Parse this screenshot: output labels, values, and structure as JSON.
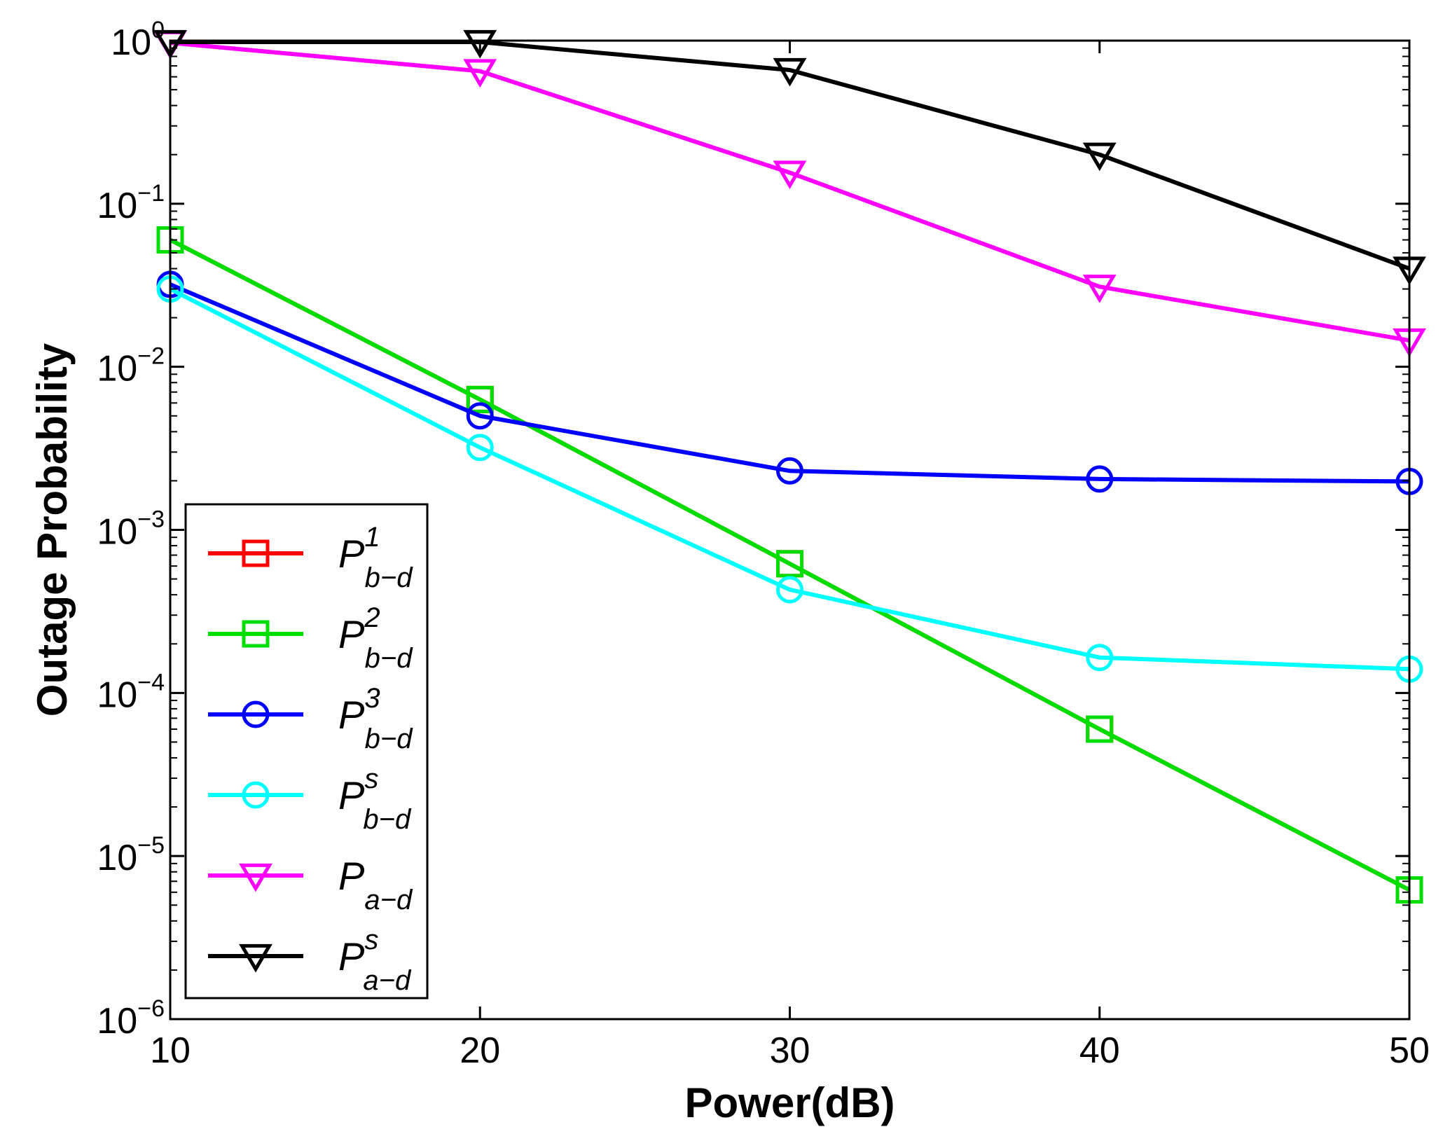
{
  "chart_data": {
    "type": "line",
    "title": "",
    "xlabel": "Power(dB)",
    "ylabel": "Outage Probability",
    "yscale": "log",
    "xlim": [
      10,
      50
    ],
    "ylim_exponents": [
      -6,
      0
    ],
    "x": [
      10,
      20,
      30,
      40,
      50
    ],
    "x_ticks": [
      "10",
      "20",
      "30",
      "40",
      "50"
    ],
    "y_ticks": [
      {
        "base": "10",
        "exp": "0",
        "value": 1
      },
      {
        "base": "10",
        "exp": "−1",
        "value": 0.1
      },
      {
        "base": "10",
        "exp": "−2",
        "value": 0.01
      },
      {
        "base": "10",
        "exp": "−3",
        "value": 0.001
      },
      {
        "base": "10",
        "exp": "−4",
        "value": 0.0001
      },
      {
        "base": "10",
        "exp": "−5",
        "value": 1e-05
      },
      {
        "base": "10",
        "exp": "−6",
        "value": 1e-06
      }
    ],
    "legend_position": "lower-left",
    "series": [
      {
        "name": "P1 b-d",
        "label_main": "P",
        "label_sup": "1",
        "label_sub": "b−d",
        "color": "#ff0000",
        "marker": "square",
        "values": [
          0.06,
          0.0063,
          0.00062,
          6e-05,
          6.2e-06
        ]
      },
      {
        "name": "P2 b-d",
        "label_main": "P",
        "label_sup": "2",
        "label_sub": "b−d",
        "color": "#00dd00",
        "marker": "square",
        "values": [
          0.06,
          0.0063,
          0.00062,
          6e-05,
          6.2e-06
        ]
      },
      {
        "name": "P3 b-d",
        "label_main": "P",
        "label_sup": "3",
        "label_sub": "b−d",
        "color": "#0000ff",
        "marker": "circle",
        "values": [
          0.032,
          0.005,
          0.0023,
          0.00205,
          0.00198
        ]
      },
      {
        "name": "Ps b-d",
        "label_main": "P",
        "label_sup": "s",
        "label_sub": "b−d",
        "color": "#00ffff",
        "marker": "circle",
        "values": [
          0.03,
          0.0032,
          0.00043,
          0.000165,
          0.00014
        ]
      },
      {
        "name": "P a-d",
        "label_main": "P",
        "label_sup": "",
        "label_sub": "a−d",
        "color": "#ff00ff",
        "marker": "triangle-down",
        "values": [
          0.97,
          0.65,
          0.155,
          0.031,
          0.0145
        ]
      },
      {
        "name": "Ps a-d",
        "label_main": "P",
        "label_sup": "s",
        "label_sub": "a−d",
        "color": "#000000",
        "marker": "triangle-down",
        "values": [
          0.98,
          0.98,
          0.66,
          0.2,
          0.04
        ]
      }
    ]
  }
}
